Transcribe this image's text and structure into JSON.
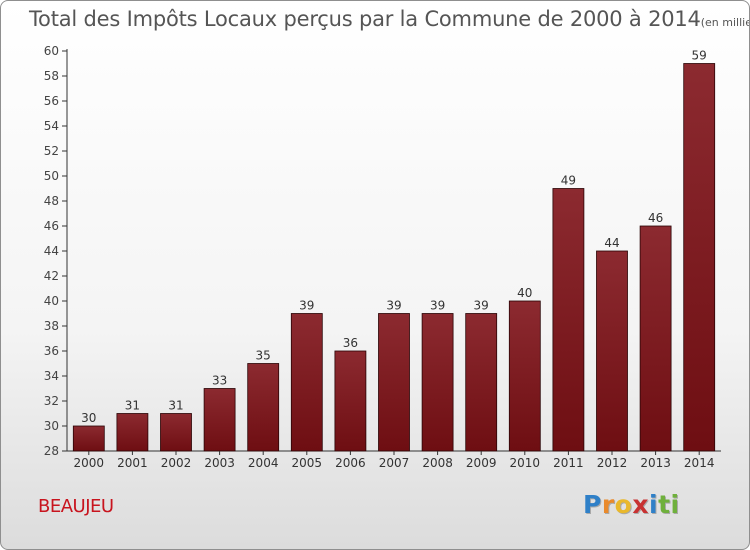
{
  "chart_data": {
    "type": "bar",
    "title": "Total des Impôts Locaux perçus par la Commune de 2000 à 2014",
    "unit": "(en milliers d'€)",
    "categories": [
      "2000",
      "2001",
      "2002",
      "2003",
      "2004",
      "2005",
      "2006",
      "2007",
      "2008",
      "2009",
      "2010",
      "2011",
      "2012",
      "2013",
      "2014"
    ],
    "values": [
      30,
      31,
      31,
      33,
      35,
      39,
      36,
      39,
      39,
      39,
      40,
      49,
      44,
      46,
      59
    ],
    "ylim": [
      28,
      60
    ],
    "yticks": [
      28,
      30,
      32,
      34,
      36,
      38,
      40,
      42,
      44,
      46,
      48,
      50,
      52,
      54,
      56,
      58,
      60
    ],
    "xlabel": "",
    "ylabel": "",
    "bar_color": "#6e0e12",
    "grid": false
  },
  "commune": "BEAUJEU",
  "brand": {
    "letters": [
      "P",
      "r",
      "o",
      "x",
      "i",
      "t",
      "i"
    ],
    "colors": [
      "#2f80c8",
      "#e98a2c",
      "#e9b82c",
      "#c83232",
      "#2f80c8",
      "#6fb03c",
      "#6fb03c"
    ]
  }
}
